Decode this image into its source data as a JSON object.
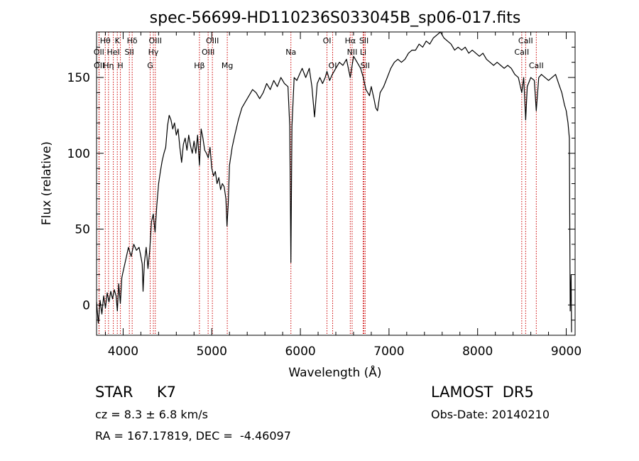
{
  "chart_data": {
    "type": "line",
    "title": "spec-56699-HD110236S033045B_sp06-017.fits",
    "xlabel": "Wavelength (Å)",
    "ylabel": "Flux (relative)",
    "xlim": [
      3700,
      9100
    ],
    "ylim": [
      -20,
      180
    ],
    "xticks": [
      {
        "value": 4000,
        "label": "4000"
      },
      {
        "value": 5000,
        "label": "5000"
      },
      {
        "value": 6000,
        "label": "6000"
      },
      {
        "value": 7000,
        "label": "7000"
      },
      {
        "value": 8000,
        "label": "8000"
      },
      {
        "value": 9000,
        "label": "9000"
      }
    ],
    "yticks": [
      {
        "value": 0,
        "label": "0"
      },
      {
        "value": 50,
        "label": "50"
      },
      {
        "value": 100,
        "label": "100"
      },
      {
        "value": 150,
        "label": "150"
      }
    ],
    "grid": false,
    "spectral_lines": [
      {
        "label": "Hθ",
        "wavelength": 3798,
        "row": 1
      },
      {
        "label": "OII",
        "wavelength": 3727,
        "row": 2
      },
      {
        "label": "OII",
        "wavelength": 3729,
        "row": 3
      },
      {
        "label": "K",
        "wavelength": 3934,
        "row": 1
      },
      {
        "label": "HeI",
        "wavelength": 3889,
        "row": 2
      },
      {
        "label": "Hη",
        "wavelength": 3835,
        "row": 3
      },
      {
        "label": "Hδ",
        "wavelength": 4102,
        "row": 1
      },
      {
        "label": "SII",
        "wavelength": 4070,
        "row": 2
      },
      {
        "label": "H",
        "wavelength": 3969,
        "row": 3
      },
      {
        "label": "OIII",
        "wavelength": 4363,
        "row": 1
      },
      {
        "label": "Hγ",
        "wavelength": 4341,
        "row": 2
      },
      {
        "label": "G",
        "wavelength": 4305,
        "row": 3
      },
      {
        "label": "OIII",
        "wavelength": 5007,
        "row": 1
      },
      {
        "label": "OIII",
        "wavelength": 4959,
        "row": 2
      },
      {
        "label": "Hβ",
        "wavelength": 4861,
        "row": 3
      },
      {
        "label": "Mg",
        "wavelength": 5175,
        "row": 3
      },
      {
        "label": "Na",
        "wavelength": 5893,
        "row": 2
      },
      {
        "label": "OI",
        "wavelength": 6300,
        "row": 1
      },
      {
        "label": "OI",
        "wavelength": 6364,
        "row": 3
      },
      {
        "label": "Hα",
        "wavelength": 6563,
        "row": 1
      },
      {
        "label": "NII",
        "wavelength": 6584,
        "row": 2
      },
      {
        "label": "SII",
        "wavelength": 6717,
        "row": 1
      },
      {
        "label": "Li",
        "wavelength": 6708,
        "row": 2
      },
      {
        "label": "SII",
        "wavelength": 6731,
        "row": 3
      },
      {
        "label": "CaII",
        "wavelength": 8542,
        "row": 1
      },
      {
        "label": "CaII",
        "wavelength": 8498,
        "row": 2
      },
      {
        "label": "CaII",
        "wavelength": 8662,
        "row": 3
      }
    ],
    "series": [
      {
        "color": "#000000",
        "points": [
          [
            3700,
            2
          ],
          [
            3720,
            -12
          ],
          [
            3740,
            3
          ],
          [
            3760,
            -6
          ],
          [
            3780,
            6
          ],
          [
            3800,
            -2
          ],
          [
            3820,
            8
          ],
          [
            3840,
            2
          ],
          [
            3860,
            9
          ],
          [
            3880,
            4
          ],
          [
            3900,
            10
          ],
          [
            3920,
            6
          ],
          [
            3935,
            -4
          ],
          [
            3950,
            14
          ],
          [
            3968,
            1
          ],
          [
            3985,
            18
          ],
          [
            4000,
            22
          ],
          [
            4030,
            30
          ],
          [
            4060,
            38
          ],
          [
            4090,
            32
          ],
          [
            4120,
            40
          ],
          [
            4150,
            36
          ],
          [
            4180,
            38
          ],
          [
            4200,
            32
          ],
          [
            4215,
            27
          ],
          [
            4225,
            9
          ],
          [
            4240,
            28
          ],
          [
            4260,
            38
          ],
          [
            4280,
            24
          ],
          [
            4300,
            36
          ],
          [
            4320,
            55
          ],
          [
            4340,
            60
          ],
          [
            4360,
            48
          ],
          [
            4380,
            66
          ],
          [
            4400,
            80
          ],
          [
            4420,
            88
          ],
          [
            4440,
            95
          ],
          [
            4460,
            100
          ],
          [
            4480,
            104
          ],
          [
            4500,
            118
          ],
          [
            4520,
            125
          ],
          [
            4540,
            122
          ],
          [
            4560,
            116
          ],
          [
            4580,
            120
          ],
          [
            4600,
            112
          ],
          [
            4620,
            116
          ],
          [
            4640,
            104
          ],
          [
            4660,
            94
          ],
          [
            4680,
            106
          ],
          [
            4700,
            110
          ],
          [
            4720,
            102
          ],
          [
            4740,
            112
          ],
          [
            4760,
            105
          ],
          [
            4780,
            100
          ],
          [
            4800,
            108
          ],
          [
            4820,
            100
          ],
          [
            4840,
            112
          ],
          [
            4861,
            92
          ],
          [
            4880,
            116
          ],
          [
            4900,
            110
          ],
          [
            4920,
            102
          ],
          [
            4940,
            100
          ],
          [
            4960,
            97
          ],
          [
            4980,
            104
          ],
          [
            5000,
            90
          ],
          [
            5020,
            85
          ],
          [
            5040,
            88
          ],
          [
            5060,
            80
          ],
          [
            5080,
            84
          ],
          [
            5100,
            76
          ],
          [
            5120,
            80
          ],
          [
            5140,
            78
          ],
          [
            5160,
            70
          ],
          [
            5172,
            52
          ],
          [
            5185,
            66
          ],
          [
            5200,
            92
          ],
          [
            5230,
            104
          ],
          [
            5260,
            112
          ],
          [
            5300,
            122
          ],
          [
            5340,
            130
          ],
          [
            5380,
            134
          ],
          [
            5420,
            138
          ],
          [
            5460,
            142
          ],
          [
            5500,
            140
          ],
          [
            5540,
            136
          ],
          [
            5580,
            140
          ],
          [
            5620,
            146
          ],
          [
            5660,
            142
          ],
          [
            5700,
            148
          ],
          [
            5740,
            144
          ],
          [
            5780,
            150
          ],
          [
            5820,
            146
          ],
          [
            5860,
            144
          ],
          [
            5880,
            118
          ],
          [
            5893,
            28
          ],
          [
            5905,
            118
          ],
          [
            5930,
            150
          ],
          [
            5960,
            148
          ],
          [
            5990,
            152
          ],
          [
            6020,
            156
          ],
          [
            6060,
            150
          ],
          [
            6100,
            156
          ],
          [
            6130,
            144
          ],
          [
            6160,
            124
          ],
          [
            6190,
            146
          ],
          [
            6220,
            150
          ],
          [
            6250,
            146
          ],
          [
            6280,
            150
          ],
          [
            6300,
            154
          ],
          [
            6330,
            148
          ],
          [
            6360,
            152
          ],
          [
            6400,
            156
          ],
          [
            6440,
            160
          ],
          [
            6480,
            158
          ],
          [
            6520,
            162
          ],
          [
            6563,
            150
          ],
          [
            6600,
            164
          ],
          [
            6640,
            160
          ],
          [
            6680,
            156
          ],
          [
            6710,
            150
          ],
          [
            6740,
            142
          ],
          [
            6780,
            138
          ],
          [
            6800,
            144
          ],
          [
            6830,
            136
          ],
          [
            6850,
            130
          ],
          [
            6870,
            128
          ],
          [
            6900,
            140
          ],
          [
            6940,
            144
          ],
          [
            6980,
            150
          ],
          [
            7020,
            156
          ],
          [
            7060,
            160
          ],
          [
            7100,
            162
          ],
          [
            7140,
            160
          ],
          [
            7180,
            162
          ],
          [
            7220,
            166
          ],
          [
            7260,
            168
          ],
          [
            7300,
            168
          ],
          [
            7340,
            172
          ],
          [
            7380,
            170
          ],
          [
            7420,
            174
          ],
          [
            7460,
            172
          ],
          [
            7500,
            176
          ],
          [
            7540,
            178
          ],
          [
            7580,
            180
          ],
          [
            7620,
            176
          ],
          [
            7660,
            174
          ],
          [
            7700,
            172
          ],
          [
            7740,
            168
          ],
          [
            7780,
            170
          ],
          [
            7820,
            168
          ],
          [
            7860,
            170
          ],
          [
            7900,
            166
          ],
          [
            7940,
            168
          ],
          [
            7980,
            166
          ],
          [
            8020,
            164
          ],
          [
            8060,
            166
          ],
          [
            8100,
            162
          ],
          [
            8140,
            160
          ],
          [
            8180,
            158
          ],
          [
            8220,
            160
          ],
          [
            8260,
            158
          ],
          [
            8300,
            156
          ],
          [
            8340,
            158
          ],
          [
            8380,
            156
          ],
          [
            8420,
            152
          ],
          [
            8460,
            150
          ],
          [
            8498,
            140
          ],
          [
            8520,
            150
          ],
          [
            8542,
            122
          ],
          [
            8560,
            144
          ],
          [
            8600,
            150
          ],
          [
            8640,
            148
          ],
          [
            8662,
            128
          ],
          [
            8690,
            150
          ],
          [
            8720,
            152
          ],
          [
            8760,
            150
          ],
          [
            8800,
            148
          ],
          [
            8840,
            150
          ],
          [
            8880,
            152
          ],
          [
            8920,
            145
          ],
          [
            8950,
            140
          ],
          [
            8980,
            132
          ],
          [
            9000,
            128
          ],
          [
            9020,
            120
          ],
          [
            9035,
            110
          ],
          [
            9045,
            -4
          ],
          [
            9055,
            20
          ],
          [
            9060,
            -18
          ]
        ]
      }
    ]
  },
  "info": {
    "object_class": "STAR     K7",
    "survey": "LAMOST  DR5",
    "cz": "cz = 8.3 ± 6.8 km/s",
    "obs_date": "Obs-Date: 20140210",
    "coords": "RA = 167.17819, DEC =  -4.46097"
  }
}
